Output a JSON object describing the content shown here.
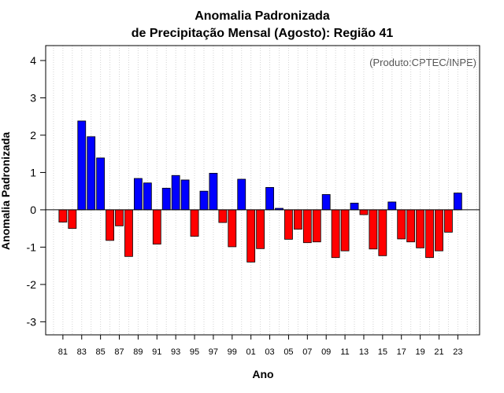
{
  "chart_data": {
    "type": "bar",
    "title": "Anomalia Padronizada",
    "subtitle": "de Precipitação Mensal (Agosto): Região 41",
    "xlabel": "Ano",
    "ylabel": "Anomalia Padronizada",
    "credit": "(Produto:CPTEC/INPE)",
    "ylim": [
      -3.35,
      4.4
    ],
    "yticks": [
      -3,
      -2,
      -1,
      0,
      1,
      2,
      3,
      4
    ],
    "grid": true,
    "positive_color": "#0000ff",
    "negative_color": "#ff0000",
    "categories": [
      "1981",
      "1982",
      "1983",
      "1984",
      "1985",
      "1986",
      "1987",
      "1988",
      "1989",
      "1990",
      "1991",
      "1992",
      "1993",
      "1994",
      "1995",
      "1996",
      "1997",
      "1998",
      "1999",
      "2000",
      "2001",
      "2002",
      "2003",
      "2004",
      "2005",
      "2006",
      "2007",
      "2008",
      "2009",
      "2010",
      "2011",
      "2012",
      "2013",
      "2014",
      "2015",
      "2016",
      "2017",
      "2018",
      "2019",
      "2020",
      "2021",
      "2022",
      "2023"
    ],
    "xtick_labels": [
      "81",
      "83",
      "85",
      "87",
      "89",
      "91",
      "93",
      "95",
      "97",
      "99",
      "01",
      "03",
      "05",
      "07",
      "09",
      "11",
      "13",
      "15",
      "17",
      "19",
      "21",
      "23"
    ],
    "values": [
      -0.33,
      -0.5,
      2.38,
      1.96,
      1.39,
      -0.82,
      -0.43,
      -1.25,
      0.84,
      0.72,
      -0.92,
      0.58,
      0.92,
      0.8,
      -0.71,
      0.5,
      0.98,
      -0.34,
      -0.99,
      0.82,
      -1.4,
      -1.04,
      0.6,
      0.04,
      -0.79,
      -0.52,
      -0.88,
      -0.86,
      0.41,
      -1.28,
      -1.1,
      0.18,
      -0.13,
      -1.05,
      -1.23,
      0.21,
      -0.78,
      -0.86,
      -1.02,
      -1.28,
      -1.1,
      -0.6,
      0.45
    ]
  }
}
